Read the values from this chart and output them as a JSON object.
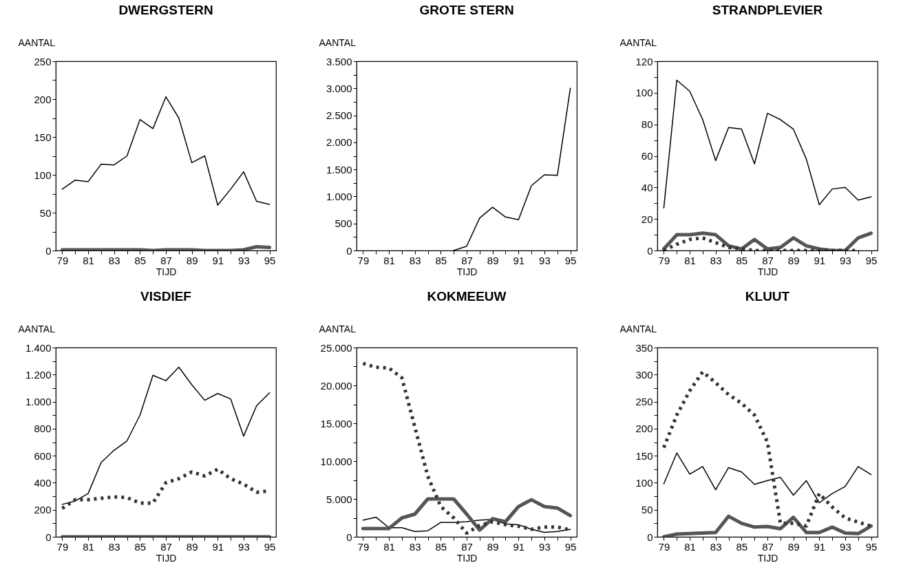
{
  "chart_data": [
    {
      "type": "line",
      "title": "DWERGSTERN",
      "xlabel": "TIJD",
      "ylabel": "AANTAL",
      "x": [
        79,
        80,
        81,
        82,
        83,
        84,
        85,
        86,
        87,
        88,
        89,
        90,
        91,
        92,
        93,
        94,
        95
      ],
      "xlim": [
        78.5,
        95.5
      ],
      "xticks": [
        79,
        {
          "value": 80,
          "label": null
        },
        81,
        {
          "value": 82,
          "label": null
        },
        83,
        {
          "value": 84,
          "label": null
        },
        85,
        {
          "value": 86,
          "label": null
        },
        87,
        {
          "value": 88,
          "label": null
        },
        89,
        {
          "value": 90,
          "label": null
        },
        91,
        {
          "value": 92,
          "label": null
        },
        93,
        {
          "value": 94,
          "label": null
        },
        95
      ],
      "ylim": [
        0,
        250
      ],
      "yticks": [
        0,
        {
          "value": 25,
          "label": null
        },
        50,
        {
          "value": 75,
          "label": null
        },
        100,
        {
          "value": 125,
          "label": null
        },
        150,
        {
          "value": 175,
          "label": null
        },
        200,
        {
          "value": 225,
          "label": null
        },
        250
      ],
      "series": [
        {
          "color": "#000000",
          "line_style": "solid",
          "values": [
            81,
            93,
            91,
            114,
            113,
            125,
            173,
            161,
            203,
            175,
            116,
            125,
            60,
            81,
            104,
            65,
            61
          ]
        },
        {
          "color": "#555555",
          "line_style": "solid",
          "values": [
            1,
            1,
            1,
            1,
            1,
            1,
            1,
            0,
            1,
            1,
            1,
            0,
            0,
            0,
            1,
            5,
            4
          ]
        }
      ]
    },
    {
      "type": "line",
      "title": "GROTE STERN",
      "xlabel": "TIJD",
      "ylabel": "AANTAL",
      "xlim": [
        78.5,
        95.5
      ],
      "xticks": [
        79,
        {
          "value": 80,
          "label": null
        },
        81,
        {
          "value": 82,
          "label": null
        },
        83,
        {
          "value": 84,
          "label": null
        },
        85,
        {
          "value": 86,
          "label": null
        },
        87,
        {
          "value": 88,
          "label": null
        },
        89,
        {
          "value": 90,
          "label": null
        },
        91,
        {
          "value": 92,
          "label": null
        },
        93,
        {
          "value": 94,
          "label": null
        },
        95
      ],
      "ylim": [
        0,
        3500
      ],
      "yticks": [
        0,
        {
          "value": 250,
          "label": null
        },
        {
          "value": 500,
          "label": "500"
        },
        {
          "value": 750,
          "label": null
        },
        {
          "value": 1000,
          "label": "1.000"
        },
        {
          "value": 1250,
          "label": null
        },
        {
          "value": 1500,
          "label": "1.500"
        },
        {
          "value": 1750,
          "label": null
        },
        {
          "value": 2000,
          "label": "2.000"
        },
        {
          "value": 2250,
          "label": null
        },
        {
          "value": 2500,
          "label": "2.500"
        },
        {
          "value": 2750,
          "label": null
        },
        {
          "value": 3000,
          "label": "3.000"
        },
        {
          "value": 3250,
          "label": null
        },
        {
          "value": 3500,
          "label": "3.500"
        }
      ],
      "series": [
        {
          "color": "#000000",
          "line_style": "solid",
          "x": [
            86,
            87,
            88,
            89,
            90,
            91,
            92,
            93,
            94,
            95
          ],
          "values": [
            0,
            80,
            600,
            800,
            620,
            570,
            1200,
            1400,
            1390,
            3000
          ]
        }
      ]
    },
    {
      "type": "line",
      "title": "STRANDPLEVIER",
      "xlabel": "TIJD",
      "ylabel": "AANTAL",
      "x": [
        79,
        80,
        81,
        82,
        83,
        84,
        85,
        86,
        87,
        88,
        89,
        90,
        91,
        92,
        93,
        94,
        95
      ],
      "xlim": [
        78.5,
        95.5
      ],
      "xticks": [
        79,
        {
          "value": 80,
          "label": null
        },
        81,
        {
          "value": 82,
          "label": null
        },
        83,
        {
          "value": 84,
          "label": null
        },
        85,
        {
          "value": 86,
          "label": null
        },
        87,
        {
          "value": 88,
          "label": null
        },
        89,
        {
          "value": 90,
          "label": null
        },
        91,
        {
          "value": 92,
          "label": null
        },
        93,
        {
          "value": 94,
          "label": null
        },
        95
      ],
      "ylim": [
        0,
        120
      ],
      "yticks": [
        0,
        {
          "value": 10,
          "label": null
        },
        20,
        {
          "value": 30,
          "label": null
        },
        40,
        {
          "value": 50,
          "label": null
        },
        60,
        {
          "value": 70,
          "label": null
        },
        80,
        {
          "value": 90,
          "label": null
        },
        100,
        {
          "value": 110,
          "label": null
        },
        120
      ],
      "series": [
        {
          "color": "#000000",
          "line_style": "solid",
          "values": [
            27,
            108,
            101,
            83,
            57,
            78,
            77,
            55,
            87,
            83,
            77,
            58,
            29,
            39,
            40,
            32,
            34
          ]
        },
        {
          "color": "#555555",
          "line_style": "solid",
          "values": [
            1,
            10,
            10,
            11,
            10,
            3,
            1,
            7,
            1,
            2,
            8,
            3,
            1,
            0,
            0,
            8,
            11
          ]
        },
        {
          "color": "#333333",
          "line_style": "dotted",
          "values": [
            0,
            4,
            7,
            8,
            5,
            2,
            1,
            0,
            0,
            0,
            0,
            0,
            0,
            0,
            0,
            0,
            null
          ]
        }
      ]
    },
    {
      "type": "line",
      "title": "VISDIEF",
      "xlabel": "TIJD",
      "ylabel": "AANTAL",
      "x": [
        79,
        80,
        81,
        82,
        83,
        84,
        85,
        86,
        87,
        88,
        89,
        90,
        91,
        92,
        93,
        94,
        95
      ],
      "xlim": [
        78.5,
        95.5
      ],
      "xticks": [
        79,
        {
          "value": 80,
          "label": null
        },
        81,
        {
          "value": 82,
          "label": null
        },
        83,
        {
          "value": 84,
          "label": null
        },
        85,
        {
          "value": 86,
          "label": null
        },
        87,
        {
          "value": 88,
          "label": null
        },
        89,
        {
          "value": 90,
          "label": null
        },
        91,
        {
          "value": 92,
          "label": null
        },
        93,
        {
          "value": 94,
          "label": null
        },
        95
      ],
      "ylim": [
        0,
        1400
      ],
      "yticks": [
        0,
        {
          "value": 100,
          "label": null
        },
        200,
        {
          "value": 300,
          "label": null
        },
        400,
        {
          "value": 500,
          "label": null
        },
        600,
        {
          "value": 700,
          "label": null
        },
        800,
        {
          "value": 900,
          "label": null
        },
        {
          "value": 1000,
          "label": "1.000"
        },
        {
          "value": 1100,
          "label": null
        },
        {
          "value": 1200,
          "label": "1.200"
        },
        {
          "value": 1300,
          "label": null
        },
        {
          "value": 1400,
          "label": "1.400"
        }
      ],
      "series": [
        {
          "color": "#000000",
          "line_style": "solid",
          "values": [
            240,
            265,
            320,
            550,
            640,
            710,
            900,
            1195,
            1155,
            1255,
            1125,
            1010,
            1060,
            1020,
            745,
            970,
            1065
          ]
        },
        {
          "color": "#555555",
          "line_style": "solid",
          "values": [
            0,
            0,
            0,
            0,
            0,
            0,
            0,
            0,
            0,
            0,
            0,
            0,
            0,
            0,
            0,
            0,
            0
          ]
        },
        {
          "color": "#333333",
          "line_style": "dotted",
          "values": [
            210,
            275,
            275,
            285,
            295,
            290,
            250,
            250,
            400,
            430,
            480,
            450,
            500,
            430,
            390,
            330,
            340
          ]
        }
      ]
    },
    {
      "type": "line",
      "title": "KOKMEEUW",
      "xlabel": "TIJD",
      "ylabel": "AANTAL",
      "x": [
        79,
        80,
        81,
        82,
        83,
        84,
        85,
        86,
        87,
        88,
        89,
        90,
        91,
        92,
        93,
        94,
        95
      ],
      "xlim": [
        78.5,
        95.5
      ],
      "xticks": [
        79,
        {
          "value": 80,
          "label": null
        },
        81,
        {
          "value": 82,
          "label": null
        },
        83,
        {
          "value": 84,
          "label": null
        },
        85,
        {
          "value": 86,
          "label": null
        },
        87,
        {
          "value": 88,
          "label": null
        },
        89,
        {
          "value": 90,
          "label": null
        },
        91,
        {
          "value": 92,
          "label": null
        },
        93,
        {
          "value": 94,
          "label": null
        },
        95
      ],
      "ylim": [
        0,
        25000
      ],
      "yticks": [
        0,
        {
          "value": 2500,
          "label": null
        },
        {
          "value": 5000,
          "label": "5.000"
        },
        {
          "value": 7500,
          "label": null
        },
        {
          "value": 10000,
          "label": "10.000"
        },
        {
          "value": 12500,
          "label": null
        },
        {
          "value": 15000,
          "label": "15.000"
        },
        {
          "value": 17500,
          "label": null
        },
        {
          "value": 20000,
          "label": "20.000"
        },
        {
          "value": 22500,
          "label": null
        },
        {
          "value": 25000,
          "label": "25.000"
        }
      ],
      "series": [
        {
          "color": "#000000",
          "line_style": "solid",
          "values": [
            2200,
            2600,
            1200,
            1200,
            700,
            800,
            1900,
            1900,
            2000,
            2200,
            2300,
            1700,
            1600,
            1000,
            600,
            700,
            1000
          ]
        },
        {
          "color": "#555555",
          "line_style": "solid",
          "values": [
            1100,
            1100,
            1100,
            2500,
            3000,
            5000,
            5000,
            5000,
            3000,
            900,
            2400,
            2000,
            4000,
            4900,
            4000,
            3800,
            2800
          ]
        },
        {
          "color": "#333333",
          "line_style": "dotted",
          "values": [
            22900,
            22400,
            22300,
            21000,
            14500,
            8000,
            4000,
            2500,
            500,
            1500,
            2000,
            1600,
            1400,
            1000,
            1300,
            1300,
            900
          ]
        }
      ]
    },
    {
      "type": "line",
      "title": "KLUUT",
      "xlabel": "TIJD",
      "ylabel": "AANTAL",
      "x": [
        79,
        80,
        81,
        82,
        83,
        84,
        85,
        86,
        87,
        88,
        89,
        90,
        91,
        92,
        93,
        94,
        95
      ],
      "xlim": [
        78.5,
        95.5
      ],
      "xticks": [
        79,
        {
          "value": 80,
          "label": null
        },
        81,
        {
          "value": 82,
          "label": null
        },
        83,
        {
          "value": 84,
          "label": null
        },
        85,
        {
          "value": 86,
          "label": null
        },
        87,
        {
          "value": 88,
          "label": null
        },
        89,
        {
          "value": 90,
          "label": null
        },
        91,
        {
          "value": 92,
          "label": null
        },
        93,
        {
          "value": 94,
          "label": null
        },
        95
      ],
      "ylim": [
        0,
        350
      ],
      "yticks": [
        0,
        {
          "value": 25,
          "label": null
        },
        50,
        {
          "value": 75,
          "label": null
        },
        100,
        {
          "value": 125,
          "label": null
        },
        150,
        {
          "value": 175,
          "label": null
        },
        200,
        {
          "value": 225,
          "label": null
        },
        250,
        {
          "value": 275,
          "label": null
        },
        300,
        {
          "value": 325,
          "label": null
        },
        350
      ],
      "series": [
        {
          "color": "#000000",
          "line_style": "solid",
          "values": [
            98,
            155,
            116,
            130,
            87,
            128,
            120,
            97,
            104,
            110,
            77,
            104,
            63,
            80,
            93,
            130,
            115
          ]
        },
        {
          "color": "#555555",
          "line_style": "solid",
          "values": [
            0,
            5,
            6,
            7,
            8,
            38,
            25,
            18,
            19,
            15,
            36,
            8,
            8,
            18,
            7,
            6,
            20
          ]
        },
        {
          "color": "#333333",
          "line_style": "dotted",
          "values": [
            165,
            225,
            270,
            305,
            285,
            263,
            247,
            225,
            175,
            25,
            25,
            20,
            80,
            55,
            35,
            27,
            20
          ]
        }
      ]
    }
  ]
}
